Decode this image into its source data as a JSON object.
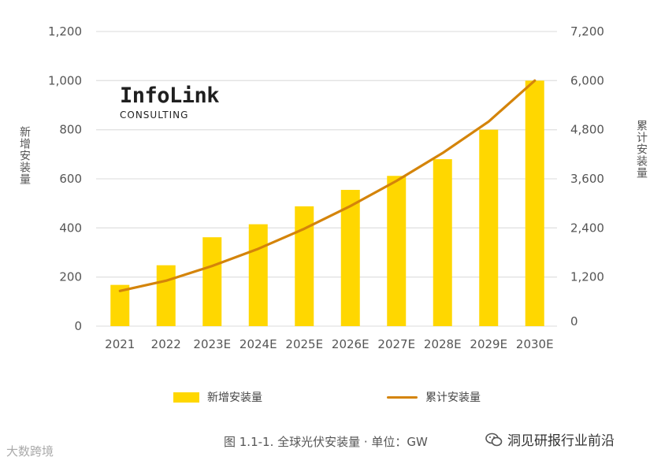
{
  "chart_data": {
    "type": "bar",
    "categories": [
      "2021",
      "2022",
      "2023E",
      "2024E",
      "2025E",
      "2026E",
      "2027E",
      "2028E",
      "2029E",
      "2030E"
    ],
    "series": [
      {
        "name": "新增安装量",
        "type": "bar",
        "axis": "left",
        "color": "#FFD700",
        "values": [
          168,
          248,
          362,
          415,
          488,
          555,
          612,
          680,
          800,
          1000
        ]
      },
      {
        "name": "累计安装量",
        "type": "line",
        "axis": "right",
        "color": "#D4840A",
        "values": [
          860,
          1110,
          1470,
          1890,
          2380,
          2935,
          3550,
          4230,
          5000,
          6000
        ]
      }
    ],
    "ylabel": "新增安装量",
    "ylabel_right": "累计安装量",
    "ylim": [
      0,
      1200
    ],
    "ylim_right": [
      0,
      7200
    ],
    "yticks": [
      "0",
      "200",
      "400",
      "600",
      "800",
      "1,000",
      "1,200"
    ],
    "yticks_right": [
      "0",
      "1,200",
      "2,400",
      "3,600",
      "4,800",
      "6,000",
      "7,200"
    ],
    "grid": true,
    "legend_position": "bottom"
  },
  "logo": {
    "name": "InfoLink",
    "sub": "CONSULTING"
  },
  "caption": "图 1.1-1. 全球光伏安装量 · 单位：GW",
  "watermark_left": "大数跨境",
  "watermark_right": "洞见研报行业前沿"
}
